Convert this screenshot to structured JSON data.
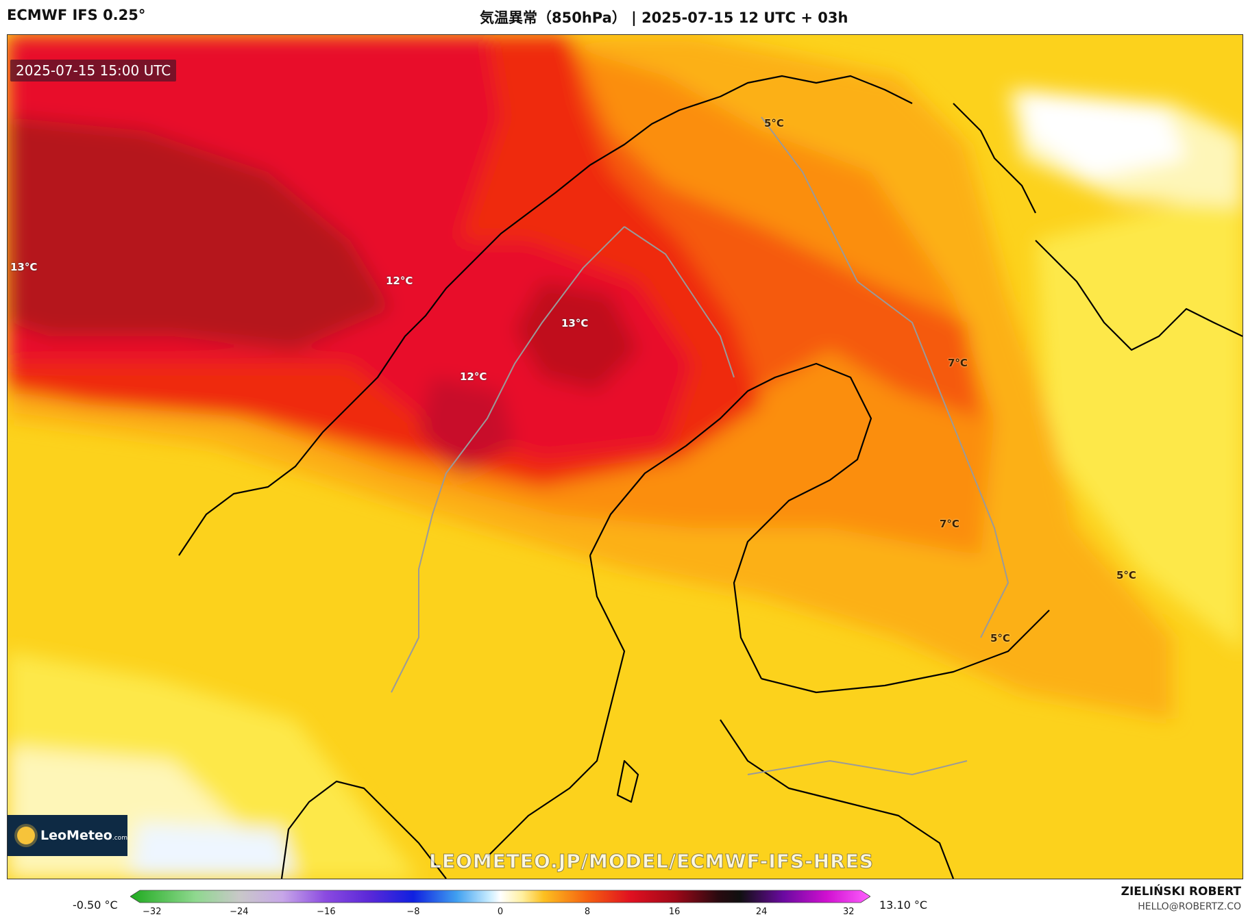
{
  "header": {
    "model": "ECMWF IFS 0.25°",
    "title": "気温異常（850hPa） | 2025-07-15 12 UTC + 03h"
  },
  "map": {
    "valid_time": "2025-07-15 15:00 UTC",
    "isotherm_labels": [
      "13°C",
      "12°C",
      "13°C",
      "12°C",
      "5°C",
      "7°C",
      "7°C",
      "5°C",
      "5°C"
    ],
    "watermark": "LEOMETEO.JP/MODEL/ECMWF-IFS-HRES",
    "fill_colors": {
      "anomaly_13": "#b5121b",
      "anomaly_12": "#e8102a",
      "anomaly_10": "#ef2a10",
      "anomaly_8": "#f55a0c",
      "anomaly_6": "#fb8e10",
      "anomaly_4": "#fcb016",
      "anomaly_2": "#fcd21c",
      "anomaly_1": "#fde84a",
      "anomaly_0": "#fef6b8",
      "near_zero": "#ffffff",
      "land_outline": "#000000",
      "border": "#a0a0a0"
    }
  },
  "logo": {
    "name": "LeoMeteo",
    "suffix": ".com"
  },
  "colorbar": {
    "min_label": "-0.50 °C",
    "max_label": "13.10 °C",
    "ticks": [
      "−32",
      "−24",
      "−16",
      "−8",
      "0",
      "8",
      "16",
      "24",
      "32"
    ],
    "tick_values": [
      -32,
      -24,
      -16,
      -8,
      0,
      8,
      16,
      24,
      32
    ],
    "range": [
      -34,
      34
    ],
    "stops": [
      {
        "v": -34,
        "c": "#1faa1f"
      },
      {
        "v": -28,
        "c": "#8fd88f"
      },
      {
        "v": -24,
        "c": "#c8c8c8"
      },
      {
        "v": -20,
        "c": "#c7a6e8"
      },
      {
        "v": -16,
        "c": "#8a4ae0"
      },
      {
        "v": -12,
        "c": "#5a28d8"
      },
      {
        "v": -8,
        "c": "#1020e0"
      },
      {
        "v": -4,
        "c": "#40a0f0"
      },
      {
        "v": -1,
        "c": "#c8ecff"
      },
      {
        "v": 0,
        "c": "#ffffff"
      },
      {
        "v": 2,
        "c": "#fff0a0"
      },
      {
        "v": 4,
        "c": "#fcc020"
      },
      {
        "v": 8,
        "c": "#f56010"
      },
      {
        "v": 12,
        "c": "#e01020"
      },
      {
        "v": 16,
        "c": "#a00818"
      },
      {
        "v": 20,
        "c": "#2a0a10"
      },
      {
        "v": 22,
        "c": "#101010"
      },
      {
        "v": 26,
        "c": "#6a0aa0"
      },
      {
        "v": 30,
        "c": "#d010d0"
      },
      {
        "v": 34,
        "c": "#ff60ff"
      }
    ]
  },
  "author": {
    "name": "ZIELIŃSKI ROBERT",
    "email": "HELLO@ROBERTZ.CO"
  }
}
